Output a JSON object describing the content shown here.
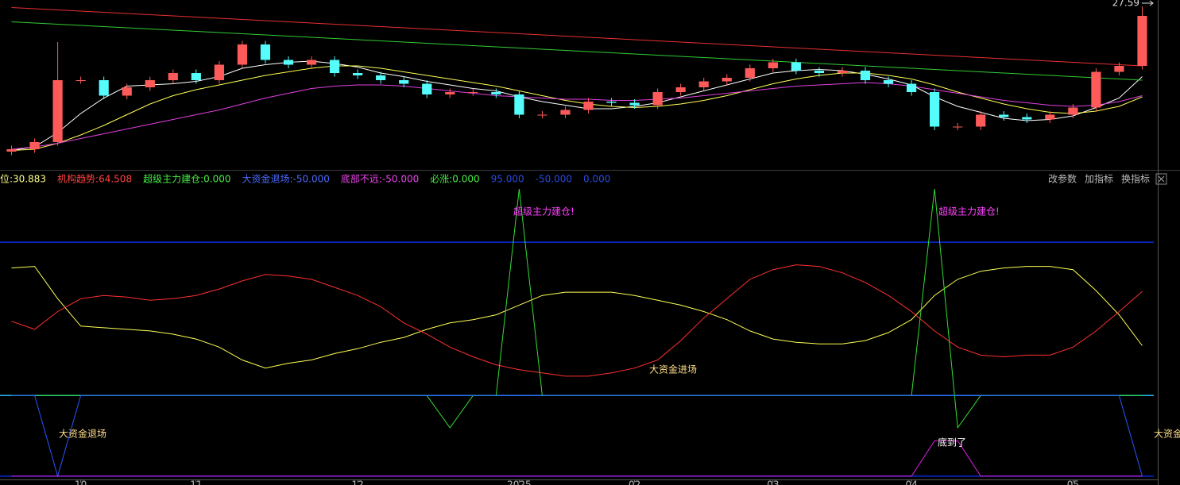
{
  "chart_data": [
    {
      "type": "candlestick",
      "ylim": [
        14,
        28
      ],
      "up_color": "#ff5a5a",
      "down_color": "#54fcfc",
      "open": [
        15.4,
        15.6,
        16.2,
        21.4,
        21.4,
        20.1,
        20.8,
        21.4,
        22.0,
        21.4,
        22.7,
        24.4,
        23.1,
        22.7,
        23.1,
        22.0,
        21.8,
        21.4,
        21.1,
        20.2,
        20.4,
        20.4,
        20.2,
        18.5,
        18.5,
        18.9,
        19.6,
        19.5,
        19.3,
        20.4,
        20.8,
        21.3,
        21.6,
        22.4,
        22.9,
        22.2,
        22.0,
        22.2,
        21.4,
        21.1,
        20.4,
        17.5,
        17.5,
        18.5,
        18.3,
        18.1,
        18.5,
        19.1,
        22.1,
        22.6
      ],
      "high": [
        15.9,
        16.5,
        24.6,
        21.7,
        21.7,
        21.1,
        21.7,
        22.3,
        22.3,
        23.0,
        24.7,
        24.7,
        23.4,
        23.4,
        23.4,
        22.3,
        22.1,
        21.7,
        21.4,
        20.7,
        20.7,
        20.7,
        20.5,
        18.8,
        19.2,
        19.9,
        19.9,
        19.8,
        20.7,
        21.1,
        21.6,
        21.9,
        22.7,
        23.2,
        23.2,
        22.5,
        22.5,
        22.5,
        21.7,
        21.4,
        20.7,
        17.8,
        18.8,
        18.8,
        18.6,
        18.8,
        19.4,
        22.4,
        22.9,
        27.59
      ],
      "low": [
        15.1,
        15.3,
        15.9,
        21.1,
        19.8,
        19.8,
        20.5,
        21.1,
        21.1,
        21.1,
        22.4,
        22.8,
        22.4,
        22.4,
        21.7,
        21.5,
        21.1,
        20.8,
        19.9,
        19.9,
        20.1,
        19.9,
        18.2,
        18.2,
        18.2,
        18.6,
        19.2,
        19.0,
        19.0,
        20.1,
        20.5,
        21.0,
        21.3,
        22.1,
        21.9,
        21.7,
        21.7,
        21.1,
        20.8,
        20.1,
        17.2,
        17.2,
        17.2,
        18.0,
        17.8,
        17.8,
        18.2,
        18.8,
        21.8,
        22.3
      ],
      "close": [
        15.6,
        16.2,
        21.4,
        21.4,
        20.1,
        20.8,
        21.4,
        22.0,
        21.4,
        22.7,
        24.4,
        23.1,
        22.7,
        23.1,
        22.0,
        21.8,
        21.4,
        21.1,
        20.2,
        20.4,
        20.4,
        20.2,
        18.5,
        18.5,
        18.9,
        19.6,
        19.5,
        19.3,
        20.4,
        20.8,
        21.3,
        21.6,
        22.4,
        22.9,
        22.2,
        22.0,
        22.2,
        21.4,
        21.1,
        20.4,
        17.5,
        17.5,
        18.5,
        18.3,
        18.1,
        18.5,
        19.1,
        22.1,
        22.6,
        26.8
      ],
      "lines": [
        {
          "color": "#ffffff",
          "values": [
            15.5,
            15.8,
            17.0,
            18.6,
            19.9,
            20.9,
            21.0,
            21.1,
            21.3,
            21.7,
            22.4,
            22.7,
            22.9,
            23.0,
            22.8,
            22.5,
            22.0,
            21.7,
            21.3,
            21.0,
            20.7,
            20.5,
            20.0,
            19.6,
            19.3,
            19.0,
            19.0,
            19.2,
            19.5,
            20.0,
            20.5,
            21.0,
            21.5,
            22.0,
            22.2,
            22.3,
            22.2,
            21.9,
            21.5,
            21.0,
            20.0,
            19.2,
            18.7,
            18.2,
            18.0,
            18.1,
            18.4,
            19.1,
            19.9,
            21.7
          ]
        },
        {
          "color": "#ffff55",
          "values": [
            15.5,
            15.6,
            16.1,
            16.8,
            17.6,
            18.5,
            19.4,
            20.1,
            20.6,
            21.0,
            21.4,
            21.8,
            22.1,
            22.4,
            22.6,
            22.6,
            22.4,
            22.1,
            21.8,
            21.5,
            21.2,
            20.9,
            20.5,
            20.1,
            19.7,
            19.4,
            19.2,
            19.1,
            19.2,
            19.4,
            19.7,
            20.1,
            20.6,
            21.1,
            21.5,
            21.8,
            22.0,
            22.0,
            21.8,
            21.5,
            21.0,
            20.4,
            19.9,
            19.4,
            19.0,
            18.7,
            18.6,
            18.8,
            19.2,
            20.0
          ]
        },
        {
          "color": "#e040e0",
          "values": [
            15.6,
            15.8,
            16.1,
            16.5,
            16.9,
            17.3,
            17.7,
            18.1,
            18.5,
            18.9,
            19.4,
            19.9,
            20.3,
            20.7,
            20.9,
            21.0,
            21.0,
            20.9,
            20.7,
            20.5,
            20.3,
            20.1,
            20.0,
            19.9,
            19.8,
            19.8,
            19.7,
            19.7,
            19.8,
            19.9,
            20.1,
            20.3,
            20.5,
            20.7,
            20.9,
            21.0,
            21.1,
            21.2,
            21.1,
            20.9,
            20.6,
            20.3,
            20.0,
            19.7,
            19.5,
            19.3,
            19.2,
            19.3,
            19.6,
            20.1
          ]
        },
        {
          "color": "#33cc33",
          "values": [
            26.3,
            26.2,
            26.1,
            26.0,
            25.9,
            25.8,
            25.7,
            25.6,
            25.5,
            25.4,
            25.3,
            25.2,
            25.1,
            25.0,
            24.9,
            24.8,
            24.7,
            24.6,
            24.5,
            24.4,
            24.3,
            24.2,
            24.1,
            24.0,
            23.9,
            23.8,
            23.7,
            23.6,
            23.5,
            23.4,
            23.3,
            23.2,
            23.1,
            23.0,
            22.9,
            22.8,
            22.7,
            22.6,
            22.5,
            22.4,
            22.3,
            22.2,
            22.1,
            22.0,
            21.9,
            21.8,
            21.7,
            21.6,
            21.5,
            21.4
          ]
        },
        {
          "color": "#e83030",
          "values": [
            27.5,
            27.4,
            27.3,
            27.2,
            27.1,
            27.0,
            26.9,
            26.8,
            26.7,
            26.6,
            26.5,
            26.4,
            26.3,
            26.2,
            26.1,
            26.0,
            25.9,
            25.8,
            25.7,
            25.6,
            25.5,
            25.4,
            25.3,
            25.2,
            25.1,
            25.0,
            24.9,
            24.8,
            24.7,
            24.6,
            24.5,
            24.4,
            24.3,
            24.2,
            24.1,
            24.0,
            23.9,
            23.8,
            23.7,
            23.6,
            23.5,
            23.4,
            23.3,
            23.2,
            23.1,
            23.0,
            22.9,
            22.8,
            22.7,
            22.6
          ]
        }
      ]
    },
    {
      "type": "line",
      "ylim": [
        -52,
        128
      ],
      "categories": [
        null,
        null,
        null,
        "10",
        null,
        null,
        null,
        null,
        "11",
        null,
        null,
        null,
        null,
        null,
        null,
        "12",
        null,
        null,
        null,
        null,
        null,
        null,
        "2025",
        null,
        null,
        null,
        null,
        "02",
        null,
        null,
        null,
        null,
        null,
        "03",
        null,
        null,
        null,
        null,
        null,
        "04",
        null,
        null,
        null,
        null,
        null,
        null,
        "05",
        null,
        null,
        null
      ],
      "hlines": [
        {
          "value": 95,
          "color": "#0a2ad8"
        },
        {
          "value": 0,
          "color": "#22b8f0"
        },
        {
          "value": -50,
          "color": "#0a2ad8"
        }
      ],
      "series": [
        {
          "color": "#ffff55",
          "values": [
            79,
            80,
            60,
            43,
            42,
            41,
            40,
            38,
            35,
            30,
            22,
            17,
            20,
            22,
            26,
            29,
            33,
            36,
            41,
            45,
            47,
            50,
            56,
            62,
            64,
            64,
            64,
            62,
            59,
            56,
            52,
            47,
            40,
            35,
            33,
            32,
            32,
            34,
            39,
            47,
            62,
            72,
            77,
            79,
            80,
            80,
            78,
            65,
            50,
            30.883
          ]
        },
        {
          "color": "#ff3030",
          "values": [
            46,
            41,
            52,
            60,
            62,
            61,
            59,
            60,
            62,
            66,
            71,
            75,
            74,
            72,
            67,
            62,
            55,
            45,
            38,
            30,
            24,
            19,
            16,
            14,
            12,
            12,
            14,
            17,
            22,
            34,
            48,
            60,
            72,
            78,
            81,
            80,
            76,
            70,
            62,
            52,
            40,
            30,
            25,
            24,
            25,
            25,
            30,
            40,
            52,
            64.508
          ]
        },
        {
          "color": "#33dd33",
          "values": [
            0,
            0,
            0,
            0,
            0,
            0,
            0,
            0,
            0,
            0,
            0,
            0,
            0,
            0,
            0,
            0,
            0,
            0,
            0,
            -20,
            0,
            0,
            128,
            0,
            0,
            0,
            0,
            0,
            0,
            0,
            0,
            0,
            0,
            0,
            0,
            0,
            0,
            0,
            0,
            0,
            128,
            -20,
            0,
            0,
            0,
            0,
            0,
            0,
            0,
            0
          ]
        },
        {
          "color": "#2a55ff",
          "values": [
            0,
            0,
            -50,
            0,
            0,
            0,
            0,
            0,
            0,
            0,
            0,
            0,
            0,
            0,
            0,
            0,
            0,
            0,
            0,
            0,
            0,
            0,
            0,
            0,
            0,
            0,
            0,
            0,
            0,
            0,
            0,
            0,
            0,
            0,
            0,
            0,
            0,
            0,
            0,
            0,
            0,
            0,
            0,
            0,
            0,
            0,
            0,
            0,
            0,
            -50
          ]
        },
        {
          "color": "#e020e0",
          "values": [
            -50,
            -50,
            -50,
            -50,
            -50,
            -50,
            -50,
            -50,
            -50,
            -50,
            -50,
            -50,
            -50,
            -50,
            -50,
            -50,
            -50,
            -50,
            -50,
            -50,
            -50,
            -50,
            -50,
            -50,
            -50,
            -50,
            -50,
            -50,
            -50,
            -50,
            -50,
            -50,
            -50,
            -50,
            -50,
            -50,
            -50,
            -50,
            -50,
            -50,
            -28,
            -28,
            -50,
            -50,
            -50,
            -50,
            -50,
            -50,
            -50,
            -50
          ]
        }
      ],
      "annotations": [
        "超级主力建仓!",
        "超级主力建仓!",
        "大资金进场",
        "大资金退场",
        "大资金退场",
        "底到了"
      ]
    }
  ],
  "toolbar": {
    "legend": [
      {
        "text": "位:30.883",
        "color": "#ffff88"
      },
      {
        "text": "机构趋势:64.508",
        "color": "#ff4040"
      },
      {
        "text": "超级主力建仓:0.000",
        "color": "#44ee44"
      },
      {
        "text": "大资金退场:-50.000",
        "color": "#4a6aff"
      },
      {
        "text": "底部不远:-50.000",
        "color": "#ee44ee"
      },
      {
        "text": "必涨:0.000",
        "color": "#44ee44"
      },
      {
        "text": "95.000",
        "color": "#2a4adf"
      },
      {
        "text": "-50.000",
        "color": "#2a4adf"
      },
      {
        "text": "0.000",
        "color": "#2a4adf"
      }
    ],
    "buttons": [
      "改参数",
      "加指标",
      "换指标"
    ]
  }
}
